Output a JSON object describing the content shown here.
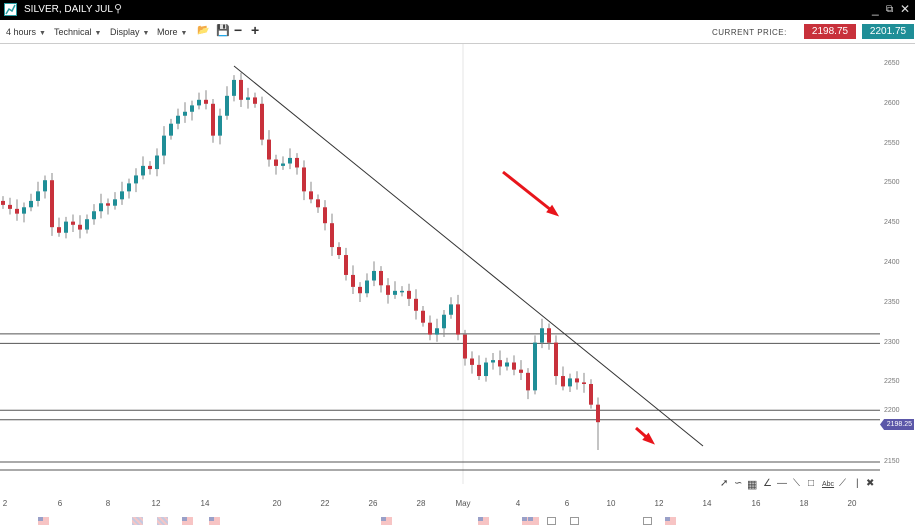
{
  "window": {
    "title": "SILVER, DAILY JUL",
    "icons": [
      "chart-logo-icon",
      "search-icon",
      "minimize-icon",
      "popout-icon",
      "close-icon"
    ]
  },
  "toolbar": {
    "timeframe": "4 hours",
    "technical": "Technical",
    "display": "Display",
    "more": "More",
    "icons": [
      "folder-icon",
      "save-icon",
      "zoom-out-icon",
      "zoom-in-icon"
    ]
  },
  "prices": {
    "label": "CURRENT PRICE:",
    "sell": "2198.75",
    "buy": "2201.75",
    "sell_color": "#c8313b",
    "buy_color": "#1f8e97"
  },
  "y_axis": {
    "ticks": [
      "2650",
      "2600",
      "2550",
      "2500",
      "2450",
      "2400",
      "2350",
      "2300",
      "2250",
      "2200",
      "2150"
    ],
    "current": "2198.25"
  },
  "x_axis": {
    "ticks": [
      "2",
      "6",
      "8",
      "12",
      "14",
      "20",
      "22",
      "26",
      "28",
      "May",
      "4",
      "6",
      "10",
      "12",
      "14",
      "16",
      "18",
      "20"
    ]
  },
  "colors": {
    "up": "#1f8e97",
    "down": "#c8313b",
    "arrow": "#e8151b"
  },
  "chart_data": {
    "type": "candlestick",
    "first_open": 2478,
    "closes": [
      2473,
      2468,
      2462,
      2470,
      2478,
      2490,
      2504,
      2445,
      2438,
      2452,
      2448,
      2442,
      2455,
      2465,
      2475,
      2472,
      2480,
      2490,
      2500,
      2510,
      2522,
      2518,
      2535,
      2560,
      2575,
      2585,
      2590,
      2598,
      2605,
      2600,
      2560,
      2585,
      2610,
      2630,
      2605,
      2608,
      2600,
      2555,
      2530,
      2522,
      2525,
      2532,
      2520,
      2490,
      2480,
      2470,
      2450,
      2420,
      2410,
      2385,
      2370,
      2362,
      2378,
      2390,
      2372,
      2360,
      2365,
      2365,
      2355,
      2340,
      2325,
      2310,
      2318,
      2335,
      2348,
      2310,
      2280,
      2272,
      2258,
      2275,
      2278,
      2270,
      2275,
      2266,
      2262,
      2240,
      2300,
      2318,
      2300,
      2258,
      2245,
      2255,
      2250,
      2248,
      2222,
      2200
    ],
    "last_low": 2165,
    "horizontal_levels": [
      2311,
      2299,
      2215,
      2203,
      2150,
      2140
    ],
    "ylim": [
      2150,
      2650
    ]
  },
  "drawing_tools": [
    "pointer-icon",
    "curve-icon",
    "fib-table-icon",
    "fan-icon",
    "hline-icon",
    "trendline-icon",
    "rectangle-icon",
    "text-icon",
    "ray-icon",
    "vline-icon",
    "delete-icon"
  ],
  "drawing_text": "Abc",
  "events": [
    "us",
    "uk",
    "uk",
    "us",
    "us",
    "us",
    "us",
    "us",
    "us",
    "cal",
    "cal",
    "cal",
    "us"
  ]
}
